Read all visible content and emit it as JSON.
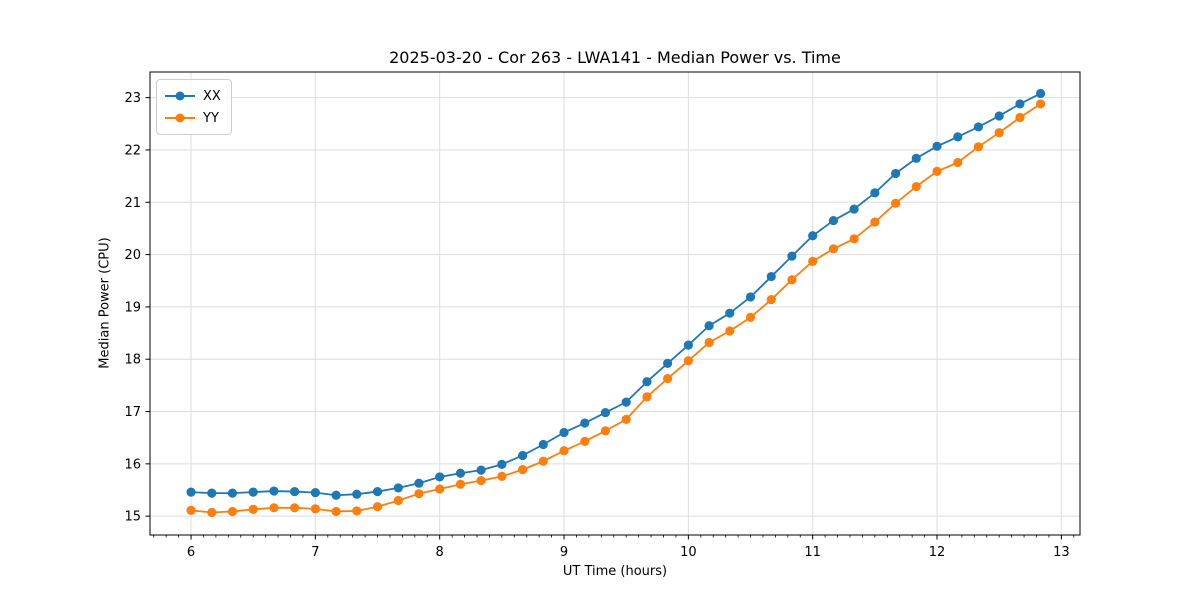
{
  "figure": {
    "title": "2025-03-20 - Cor 263 - LWA141 - Median Power vs. Time",
    "xlabel": "UT Time (hours)",
    "ylabel": "Median Power (CPU)"
  },
  "legend": {
    "position": "upper-left",
    "items": [
      {
        "label": "XX",
        "color": "#1f77b4"
      },
      {
        "label": "YY",
        "color": "#ff7f0e"
      }
    ]
  },
  "colors": {
    "series_xx": "#1f77b4",
    "series_yy": "#ff7f0e",
    "grid": "#dedede",
    "spine": "#000000",
    "background": "#ffffff"
  },
  "chart_data": {
    "type": "line",
    "title": "2025-03-20 - Cor 263 - LWA141 - Median Power vs. Time",
    "xlabel": "UT Time (hours)",
    "ylabel": "Median Power (CPU)",
    "xlim": [
      5.67,
      13.15
    ],
    "ylim": [
      14.64,
      23.49
    ],
    "x_ticks": [
      6,
      7,
      8,
      9,
      10,
      11,
      12,
      13
    ],
    "y_ticks": [
      15,
      16,
      17,
      18,
      19,
      20,
      21,
      22,
      23
    ],
    "x_minor_step": 0.1,
    "grid": true,
    "marker": "circle",
    "legend_position": "upper-left",
    "x": [
      6.0,
      6.167,
      6.333,
      6.5,
      6.667,
      6.833,
      7.0,
      7.167,
      7.333,
      7.5,
      7.667,
      7.833,
      8.0,
      8.167,
      8.333,
      8.5,
      8.667,
      8.833,
      9.0,
      9.167,
      9.333,
      9.5,
      9.667,
      9.833,
      10.0,
      10.167,
      10.333,
      10.5,
      10.667,
      10.833,
      11.0,
      11.167,
      11.333,
      11.5,
      11.667,
      11.833,
      12.0,
      12.167,
      12.333,
      12.5,
      12.667,
      12.833
    ],
    "series": [
      {
        "name": "XX",
        "color": "#1f77b4",
        "values": [
          15.46,
          15.44,
          15.44,
          15.46,
          15.48,
          15.47,
          15.45,
          15.4,
          15.42,
          15.47,
          15.54,
          15.63,
          15.75,
          15.82,
          15.88,
          15.99,
          16.16,
          16.37,
          16.6,
          16.78,
          16.98,
          17.18,
          17.57,
          17.92,
          18.27,
          18.64,
          18.88,
          19.19,
          19.58,
          19.97,
          20.36,
          20.65,
          20.87,
          21.18,
          21.55,
          21.84,
          22.07,
          22.25,
          22.44,
          22.65,
          22.88,
          23.08
        ]
      },
      {
        "name": "YY",
        "color": "#ff7f0e",
        "values": [
          15.11,
          15.07,
          15.09,
          15.13,
          15.16,
          15.16,
          15.14,
          15.09,
          15.1,
          15.18,
          15.3,
          15.43,
          15.52,
          15.61,
          15.68,
          15.76,
          15.89,
          16.05,
          16.25,
          16.43,
          16.63,
          16.85,
          17.28,
          17.63,
          17.97,
          18.32,
          18.54,
          18.8,
          19.14,
          19.52,
          19.87,
          20.11,
          20.3,
          20.62,
          20.98,
          21.3,
          21.59,
          21.76,
          22.06,
          22.33,
          22.62,
          22.88
        ]
      }
    ]
  }
}
